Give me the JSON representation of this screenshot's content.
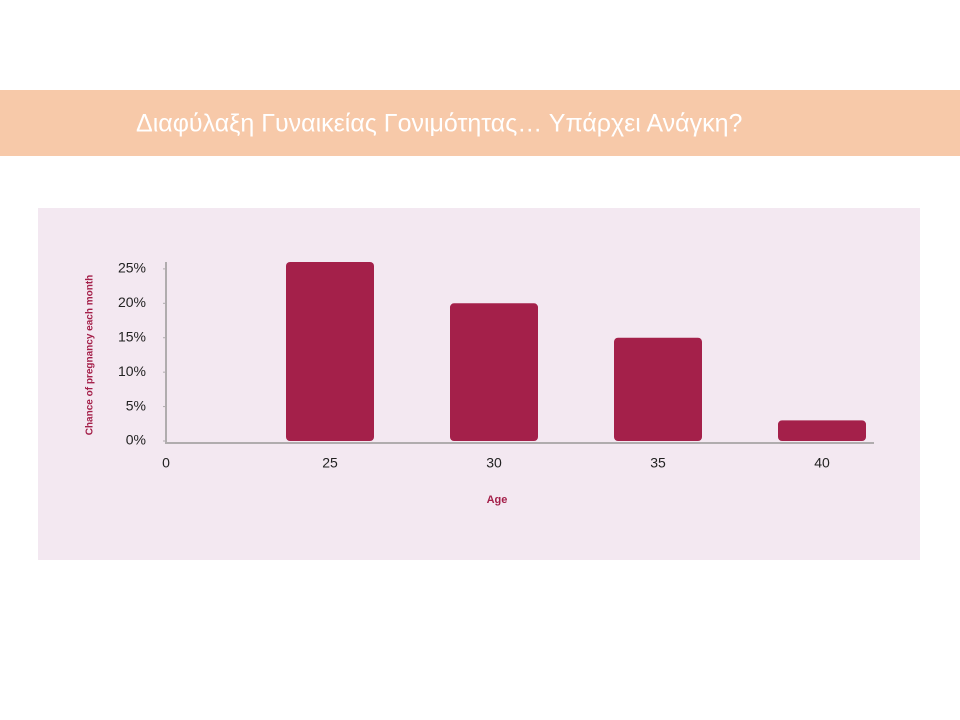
{
  "chart_data": {
    "type": "bar",
    "title": "Διαφύλαξη Γυναικείας Γονιμότητας… Υπάρχει Ανάγκη?",
    "y_label": "Chance of pregnancy each month",
    "x_label": "Age",
    "categories": [
      "0",
      "25",
      "30",
      "35",
      "40"
    ],
    "values": [
      null,
      26,
      20,
      15,
      3
    ],
    "color": "#a4204a",
    "ylim": [
      0,
      26
    ],
    "yticks": [
      {
        "value": 0,
        "label": "0%"
      },
      {
        "value": 5,
        "label": "5%"
      },
      {
        "value": 10,
        "label": "10%"
      },
      {
        "value": 15,
        "label": "15%"
      },
      {
        "value": 20,
        "label": "20%"
      },
      {
        "value": 25,
        "label": "25%"
      }
    ],
    "grid": false
  }
}
